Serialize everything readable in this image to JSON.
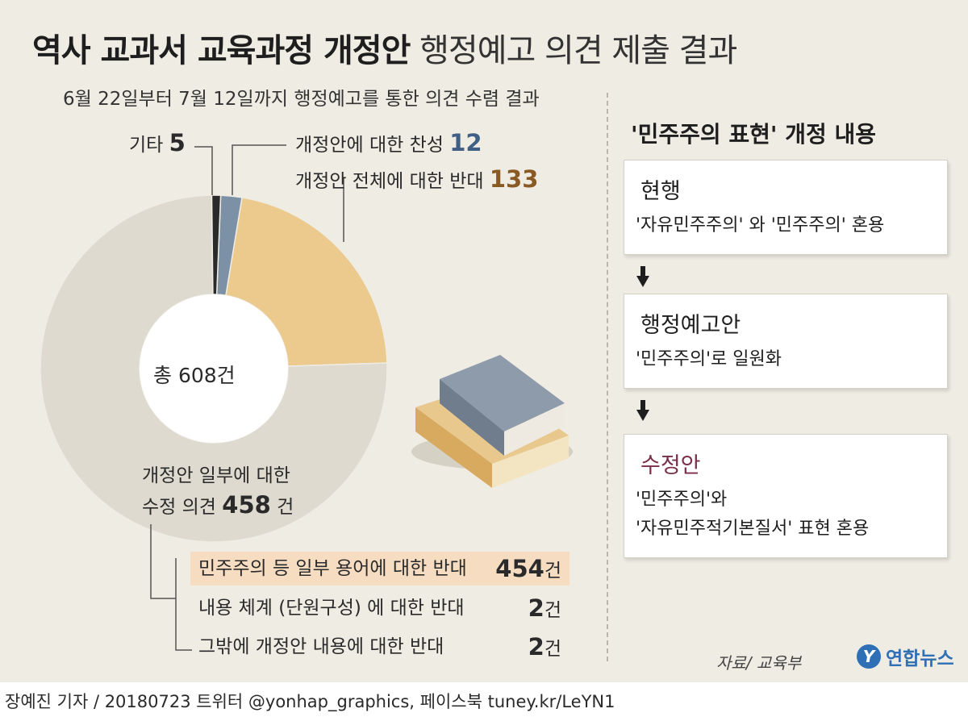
{
  "header": {
    "title_bold": "역사 교과서 교육과정 개정안",
    "title_light": "행정예고 의견 제출 결과",
    "subtitle": "6월 22일부터 7월 12일까지 행정예고를 통한 의견 수렴 결과"
  },
  "chart_data": {
    "type": "pie",
    "total_label": "총 608건",
    "slices": [
      {
        "label": "개정안에 대한 찬성",
        "value": 12,
        "color": "#7d91a6",
        "label_color": "#3f5f85"
      },
      {
        "label": "개정안 전체에 대한 반대",
        "value": 133,
        "color": "#ecc98c",
        "label_color": "#8a5a24"
      },
      {
        "label_line1": "개정안 일부에 대한",
        "label_line2": "수정 의견",
        "label_suffix": "건",
        "value": 458,
        "color": "#dedad0",
        "label_color": "#1e1e1e"
      },
      {
        "label": "기타",
        "value": 5,
        "color": "#2a2a2a",
        "label_color": "#2a2a2a"
      }
    ],
    "breakdown": [
      {
        "label": "민주주의 등 일부 용어에 대한 반대",
        "value": 454,
        "unit": "건",
        "highlight": true
      },
      {
        "label": "내용 체계 (단원구성) 에 대한 반대",
        "value": 2,
        "unit": "건",
        "highlight": false
      },
      {
        "label": "그밖에 개정안 내용에 대한 반대",
        "value": 2,
        "unit": "건",
        "highlight": false
      }
    ]
  },
  "right_panel": {
    "title": "'민주주의 표현' 개정 내용",
    "boxes": [
      {
        "head": "현행",
        "lines": [
          "'자유민주주의' 와 '민주주의' 혼용"
        ],
        "head_color": "#1e1e1e"
      },
      {
        "head": "행정예고안",
        "lines": [
          "'민주주의'로 일원화"
        ],
        "head_color": "#1e1e1e"
      },
      {
        "head": "수정안",
        "lines": [
          "'민주주의'와",
          "'자유민주적기본질서' 표현 혼용"
        ],
        "head_color": "#7a2e4a"
      }
    ]
  },
  "source": "자료/ 교육부",
  "logo": {
    "mark": "Y",
    "text": "연합뉴스"
  },
  "footer": {
    "credit": "장예진 기자 / 20180723 트위터 @yonhap_graphics, 페이스북 tuney.kr/LeYN1"
  }
}
